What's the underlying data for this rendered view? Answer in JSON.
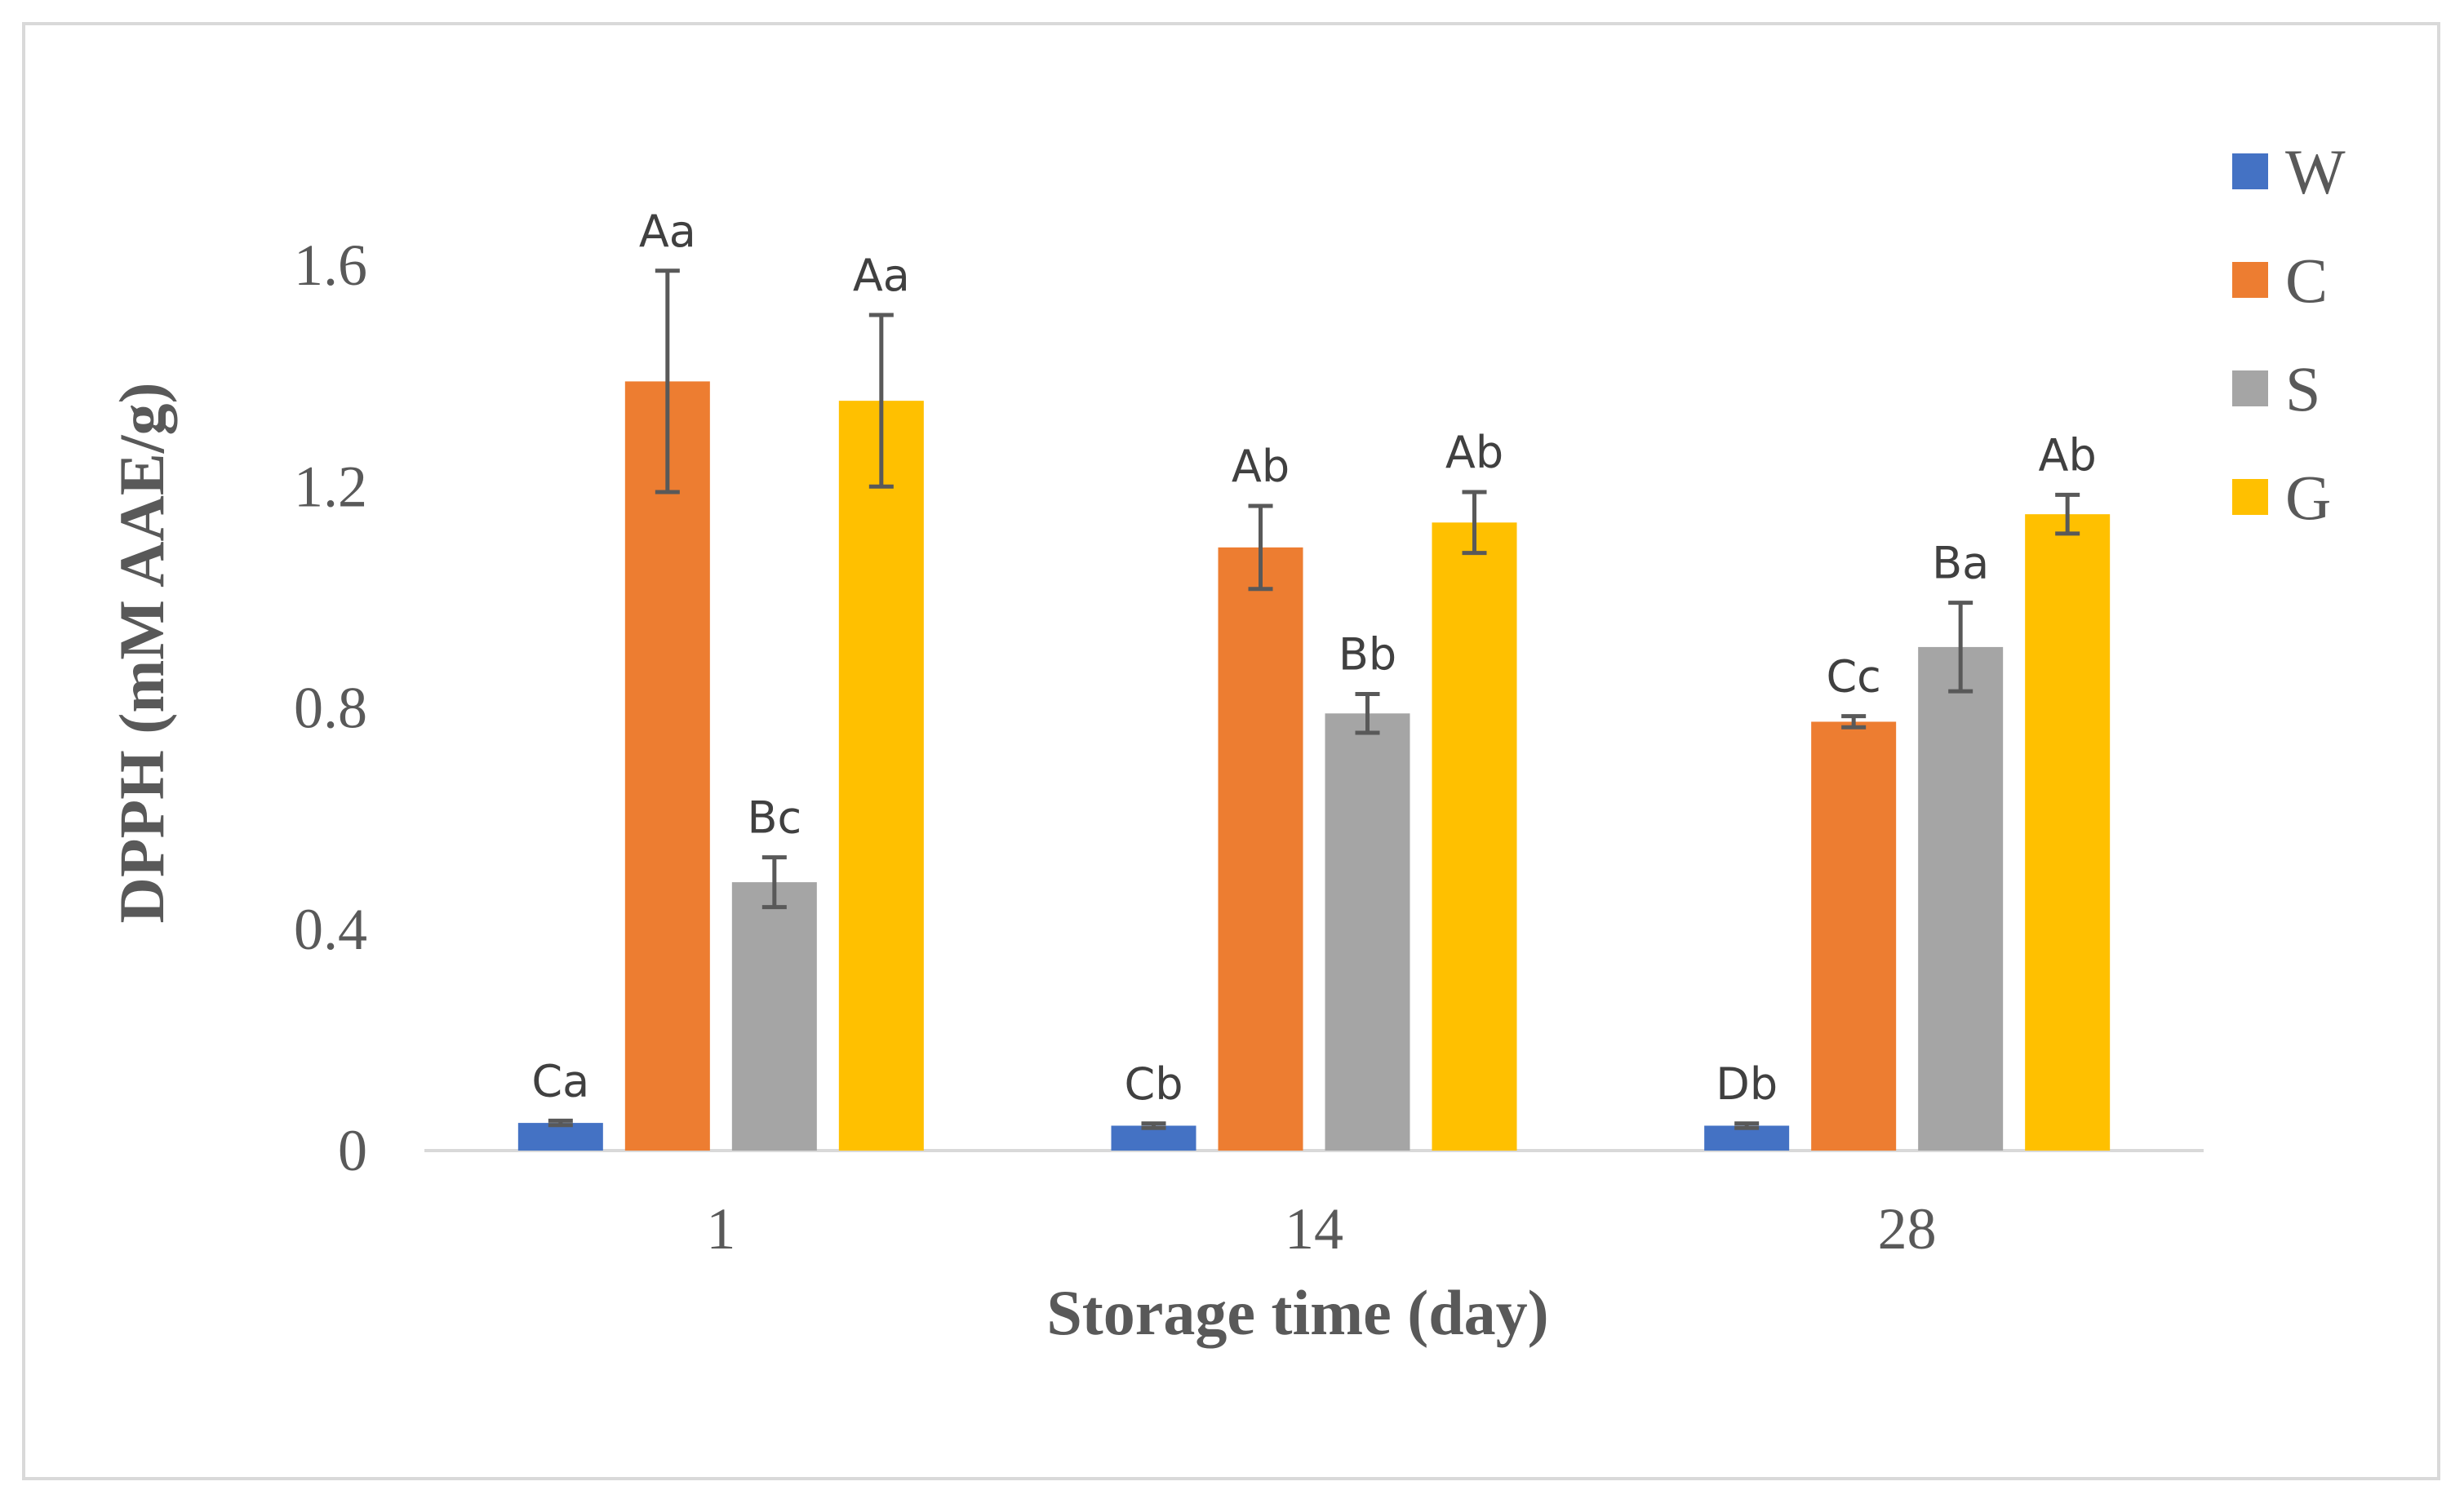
{
  "chart_data": {
    "type": "bar",
    "title": "",
    "xlabel": "Storage time (day)",
    "ylabel": "DPPH (mM AAE/g)",
    "categories": [
      "1",
      "14",
      "28"
    ],
    "ylim": [
      0,
      1.6
    ],
    "yticks": [
      0,
      0.4,
      0.8,
      1.2,
      1.6
    ],
    "ytick_labels": [
      "0",
      "0.4",
      "0.8",
      "1.2",
      "1.6"
    ],
    "grid": false,
    "legend_position": "top-right",
    "series": [
      {
        "name": "W",
        "color": "#4472c4",
        "values": [
          0.05,
          0.045,
          0.045
        ],
        "errors": [
          0.004,
          0.004,
          0.004
        ],
        "labels": [
          "Ca",
          "Cb",
          "Db"
        ]
      },
      {
        "name": "C",
        "color": "#ed7d31",
        "values": [
          1.39,
          1.09,
          0.775
        ],
        "errors": [
          0.2,
          0.075,
          0.01
        ],
        "labels": [
          "Aa",
          "Ab",
          "Cc"
        ]
      },
      {
        "name": "S",
        "color": "#a5a5a5",
        "values": [
          0.485,
          0.79,
          0.91
        ],
        "errors": [
          0.045,
          0.035,
          0.08
        ],
        "labels": [
          "Bc",
          "Bb",
          "Ba"
        ]
      },
      {
        "name": "G",
        "color": "#ffc000",
        "values": [
          1.355,
          1.135,
          1.15
        ],
        "errors": [
          0.155,
          0.055,
          0.035
        ],
        "labels": [
          "Aa",
          "Ab",
          "Ab"
        ]
      }
    ]
  }
}
